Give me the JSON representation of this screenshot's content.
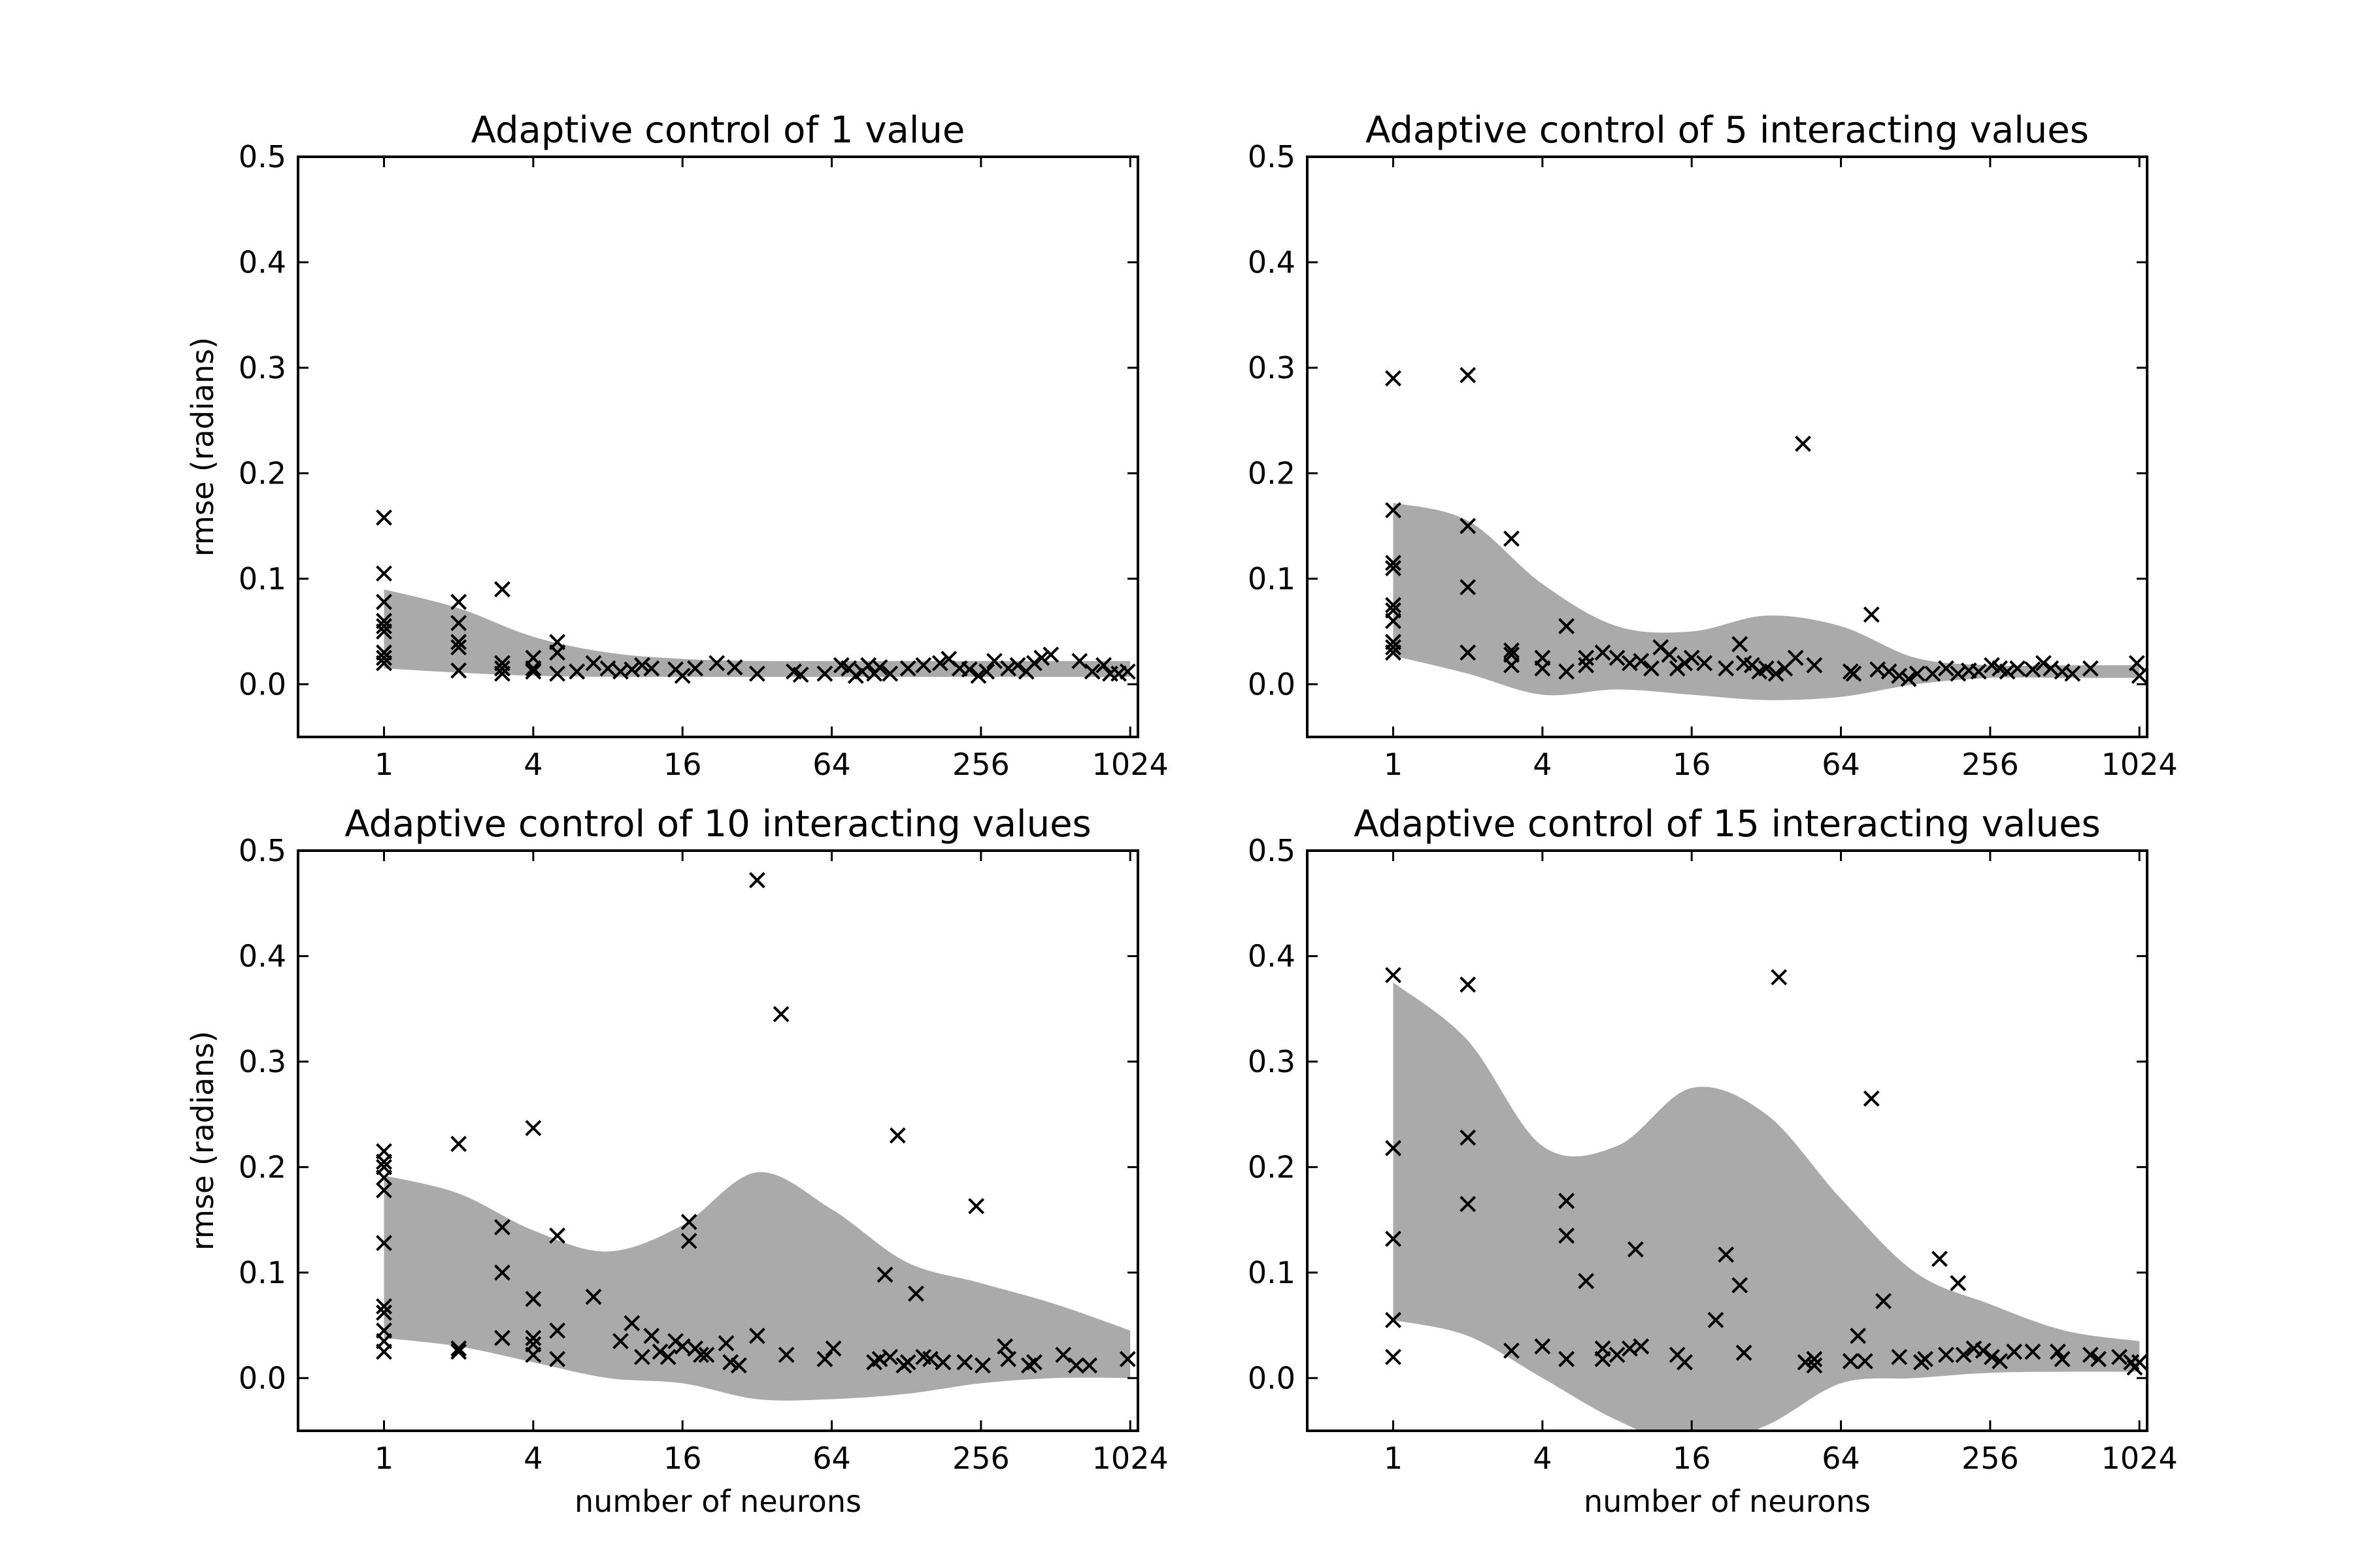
{
  "chart_data": [
    {
      "type": "scatter",
      "title": "Adaptive control of 1 value",
      "xlabel": "",
      "ylabel": "rmse (radians)",
      "x_scale": "log2",
      "xlim": [
        0.45,
        1100
      ],
      "ylim": [
        -0.05,
        0.5
      ],
      "xticks": [
        "1",
        "4",
        "16",
        "64",
        "256",
        "1024"
      ],
      "yticks": [
        "0.0",
        "0.1",
        "0.2",
        "0.3",
        "0.4",
        "0.5"
      ],
      "grid": false,
      "band_color": "#aaaaaa",
      "band": {
        "x": [
          1,
          2,
          4,
          8,
          16,
          32,
          64,
          128,
          256,
          512,
          1024
        ],
        "upper": [
          0.09,
          0.072,
          0.045,
          0.03,
          0.024,
          0.022,
          0.022,
          0.022,
          0.022,
          0.022,
          0.022
        ],
        "lower": [
          0.015,
          0.011,
          0.008,
          0.007,
          0.007,
          0.007,
          0.007,
          0.007,
          0.007,
          0.007,
          0.007
        ]
      },
      "points": [
        [
          1,
          0.158
        ],
        [
          1,
          0.105
        ],
        [
          1,
          0.078
        ],
        [
          1,
          0.06
        ],
        [
          1,
          0.055
        ],
        [
          1,
          0.05
        ],
        [
          1,
          0.03
        ],
        [
          1,
          0.025
        ],
        [
          1,
          0.02
        ],
        [
          2,
          0.078
        ],
        [
          2,
          0.058
        ],
        [
          2,
          0.04
        ],
        [
          2,
          0.035
        ],
        [
          2,
          0.013
        ],
        [
          3,
          0.09
        ],
        [
          3,
          0.02
        ],
        [
          3,
          0.015
        ],
        [
          3,
          0.01
        ],
        [
          4,
          0.025
        ],
        [
          4,
          0.015
        ],
        [
          4,
          0.012
        ],
        [
          5,
          0.04
        ],
        [
          5,
          0.03
        ],
        [
          5,
          0.01
        ],
        [
          6,
          0.012
        ],
        [
          7,
          0.02
        ],
        [
          8,
          0.015
        ],
        [
          9,
          0.012
        ],
        [
          10,
          0.014
        ],
        [
          11,
          0.018
        ],
        [
          12,
          0.015
        ],
        [
          15,
          0.014
        ],
        [
          16,
          0.008
        ],
        [
          18,
          0.015
        ],
        [
          22,
          0.02
        ],
        [
          26,
          0.016
        ],
        [
          32,
          0.01
        ],
        [
          45,
          0.012
        ],
        [
          48,
          0.009
        ],
        [
          60,
          0.01
        ],
        [
          70,
          0.018
        ],
        [
          75,
          0.015
        ],
        [
          80,
          0.008
        ],
        [
          85,
          0.012
        ],
        [
          90,
          0.018
        ],
        [
          95,
          0.01
        ],
        [
          100,
          0.016
        ],
        [
          110,
          0.01
        ],
        [
          130,
          0.015
        ],
        [
          150,
          0.018
        ],
        [
          175,
          0.02
        ],
        [
          190,
          0.024
        ],
        [
          210,
          0.015
        ],
        [
          230,
          0.014
        ],
        [
          250,
          0.008
        ],
        [
          270,
          0.012
        ],
        [
          290,
          0.022
        ],
        [
          330,
          0.015
        ],
        [
          360,
          0.018
        ],
        [
          390,
          0.012
        ],
        [
          420,
          0.02
        ],
        [
          450,
          0.025
        ],
        [
          490,
          0.028
        ],
        [
          640,
          0.022
        ],
        [
          720,
          0.012
        ],
        [
          800,
          0.018
        ],
        [
          850,
          0.01
        ],
        [
          920,
          0.01
        ],
        [
          1000,
          0.012
        ]
      ]
    },
    {
      "type": "scatter",
      "title": "Adaptive control of 5 interacting values",
      "xlabel": "",
      "ylabel": "",
      "x_scale": "log2",
      "xlim": [
        0.45,
        1100
      ],
      "ylim": [
        -0.05,
        0.5
      ],
      "xticks": [
        "1",
        "4",
        "16",
        "64",
        "256",
        "1024"
      ],
      "yticks": [
        "0.0",
        "0.1",
        "0.2",
        "0.3",
        "0.4",
        "0.5"
      ],
      "grid": false,
      "band_color": "#aaaaaa",
      "band": {
        "x": [
          1,
          2,
          4,
          8,
          16,
          32,
          64,
          128,
          256,
          512,
          1024
        ],
        "upper": [
          0.172,
          0.155,
          0.095,
          0.055,
          0.05,
          0.065,
          0.055,
          0.025,
          0.018,
          0.018,
          0.018
        ],
        "lower": [
          0.027,
          0.01,
          -0.01,
          -0.005,
          -0.01,
          -0.015,
          -0.012,
          0.0,
          0.006,
          0.006,
          0.006
        ]
      },
      "points": [
        [
          1,
          0.29
        ],
        [
          1,
          0.165
        ],
        [
          1,
          0.115
        ],
        [
          1,
          0.11
        ],
        [
          1,
          0.075
        ],
        [
          1,
          0.07
        ],
        [
          1,
          0.06
        ],
        [
          1,
          0.04
        ],
        [
          1,
          0.035
        ],
        [
          1,
          0.03
        ],
        [
          2,
          0.293
        ],
        [
          2,
          0.15
        ],
        [
          2,
          0.092
        ],
        [
          2,
          0.03
        ],
        [
          3,
          0.138
        ],
        [
          3,
          0.032
        ],
        [
          3,
          0.028
        ],
        [
          3,
          0.018
        ],
        [
          4,
          0.025
        ],
        [
          4,
          0.015
        ],
        [
          5,
          0.055
        ],
        [
          5,
          0.012
        ],
        [
          6,
          0.025
        ],
        [
          6,
          0.018
        ],
        [
          7,
          0.03
        ],
        [
          8,
          0.025
        ],
        [
          9,
          0.02
        ],
        [
          10,
          0.022
        ],
        [
          11,
          0.015
        ],
        [
          12,
          0.035
        ],
        [
          13,
          0.028
        ],
        [
          14,
          0.015
        ],
        [
          15,
          0.02
        ],
        [
          16,
          0.025
        ],
        [
          18,
          0.02
        ],
        [
          22,
          0.015
        ],
        [
          25,
          0.038
        ],
        [
          26,
          0.02
        ],
        [
          28,
          0.018
        ],
        [
          30,
          0.012
        ],
        [
          32,
          0.015
        ],
        [
          35,
          0.01
        ],
        [
          38,
          0.015
        ],
        [
          42,
          0.025
        ],
        [
          45,
          0.228
        ],
        [
          50,
          0.018
        ],
        [
          70,
          0.012
        ],
        [
          72,
          0.01
        ],
        [
          85,
          0.066
        ],
        [
          90,
          0.014
        ],
        [
          100,
          0.012
        ],
        [
          110,
          0.008
        ],
        [
          120,
          0.005
        ],
        [
          130,
          0.01
        ],
        [
          150,
          0.01
        ],
        [
          170,
          0.015
        ],
        [
          190,
          0.01
        ],
        [
          210,
          0.013
        ],
        [
          230,
          0.012
        ],
        [
          260,
          0.018
        ],
        [
          280,
          0.015
        ],
        [
          300,
          0.012
        ],
        [
          330,
          0.015
        ],
        [
          380,
          0.014
        ],
        [
          420,
          0.02
        ],
        [
          450,
          0.015
        ],
        [
          500,
          0.012
        ],
        [
          550,
          0.01
        ],
        [
          650,
          0.015
        ],
        [
          1000,
          0.02
        ],
        [
          1024,
          0.008
        ]
      ]
    },
    {
      "type": "scatter",
      "title": "Adaptive control of 10 interacting values",
      "xlabel": "number of neurons",
      "ylabel": "rmse (radians)",
      "x_scale": "log2",
      "xlim": [
        0.45,
        1100
      ],
      "ylim": [
        -0.05,
        0.5
      ],
      "xticks": [
        "1",
        "4",
        "16",
        "64",
        "256",
        "1024"
      ],
      "yticks": [
        "0.0",
        "0.1",
        "0.2",
        "0.3",
        "0.4",
        "0.5"
      ],
      "grid": false,
      "band_color": "#aaaaaa",
      "band": {
        "x": [
          1,
          2,
          4,
          8,
          16,
          32,
          64,
          128,
          256,
          512,
          1024
        ],
        "upper": [
          0.192,
          0.175,
          0.14,
          0.12,
          0.145,
          0.195,
          0.16,
          0.11,
          0.09,
          0.07,
          0.045
        ],
        "lower": [
          0.038,
          0.03,
          0.015,
          0.0,
          -0.005,
          -0.02,
          -0.02,
          -0.015,
          -0.005,
          0.0,
          0.0
        ]
      },
      "points": [
        [
          1,
          0.215
        ],
        [
          1,
          0.205
        ],
        [
          1,
          0.2
        ],
        [
          1,
          0.19
        ],
        [
          1,
          0.178
        ],
        [
          1,
          0.128
        ],
        [
          1,
          0.068
        ],
        [
          1,
          0.062
        ],
        [
          1,
          0.045
        ],
        [
          1,
          0.035
        ],
        [
          1,
          0.025
        ],
        [
          2,
          0.222
        ],
        [
          2,
          0.028
        ],
        [
          2,
          0.025
        ],
        [
          3,
          0.143
        ],
        [
          3,
          0.1
        ],
        [
          3,
          0.038
        ],
        [
          4,
          0.237
        ],
        [
          4,
          0.075
        ],
        [
          4,
          0.038
        ],
        [
          4,
          0.032
        ],
        [
          4,
          0.022
        ],
        [
          5,
          0.135
        ],
        [
          5,
          0.045
        ],
        [
          5,
          0.018
        ],
        [
          7,
          0.077
        ],
        [
          9,
          0.035
        ],
        [
          10,
          0.052
        ],
        [
          11,
          0.02
        ],
        [
          12,
          0.04
        ],
        [
          13,
          0.025
        ],
        [
          14,
          0.02
        ],
        [
          15,
          0.035
        ],
        [
          16,
          0.03
        ],
        [
          17,
          0.148
        ],
        [
          17,
          0.13
        ],
        [
          18,
          0.028
        ],
        [
          19,
          0.022
        ],
        [
          20,
          0.022
        ],
        [
          24,
          0.033
        ],
        [
          25,
          0.015
        ],
        [
          27,
          0.012
        ],
        [
          32,
          0.04
        ],
        [
          32,
          0.472
        ],
        [
          40,
          0.345
        ],
        [
          42,
          0.022
        ],
        [
          60,
          0.018
        ],
        [
          65,
          0.028
        ],
        [
          95,
          0.015
        ],
        [
          100,
          0.018
        ],
        [
          105,
          0.098
        ],
        [
          110,
          0.02
        ],
        [
          118,
          0.23
        ],
        [
          125,
          0.012
        ],
        [
          130,
          0.015
        ],
        [
          140,
          0.08
        ],
        [
          150,
          0.02
        ],
        [
          160,
          0.018
        ],
        [
          180,
          0.015
        ],
        [
          220,
          0.015
        ],
        [
          245,
          0.163
        ],
        [
          260,
          0.012
        ],
        [
          320,
          0.03
        ],
        [
          330,
          0.018
        ],
        [
          400,
          0.012
        ],
        [
          420,
          0.015
        ],
        [
          550,
          0.022
        ],
        [
          620,
          0.012
        ],
        [
          700,
          0.012
        ],
        [
          1000,
          0.018
        ]
      ]
    },
    {
      "type": "scatter",
      "title": "Adaptive control of 15 interacting values",
      "xlabel": "number of neurons",
      "ylabel": "",
      "x_scale": "log2",
      "xlim": [
        0.45,
        1100
      ],
      "ylim": [
        -0.05,
        0.5
      ],
      "xticks": [
        "1",
        "4",
        "16",
        "64",
        "256",
        "1024"
      ],
      "yticks": [
        "0.0",
        "0.1",
        "0.2",
        "0.3",
        "0.4",
        "0.5"
      ],
      "grid": false,
      "band_color": "#aaaaaa",
      "band": {
        "x": [
          1,
          2,
          4,
          8,
          16,
          32,
          64,
          128,
          256,
          512,
          1024
        ],
        "upper": [
          0.375,
          0.32,
          0.22,
          0.22,
          0.275,
          0.25,
          0.17,
          0.1,
          0.07,
          0.045,
          0.035
        ],
        "lower": [
          0.055,
          0.04,
          0.0,
          -0.04,
          -0.065,
          -0.045,
          -0.005,
          0.0,
          0.005,
          0.006,
          0.006
        ]
      },
      "points": [
        [
          1,
          0.382
        ],
        [
          1,
          0.218
        ],
        [
          1,
          0.132
        ],
        [
          1,
          0.055
        ],
        [
          1,
          0.02
        ],
        [
          2,
          0.373
        ],
        [
          2,
          0.228
        ],
        [
          2,
          0.165
        ],
        [
          3,
          0.026
        ],
        [
          4,
          0.03
        ],
        [
          5,
          0.168
        ],
        [
          5,
          0.135
        ],
        [
          5,
          0.018
        ],
        [
          6,
          0.092
        ],
        [
          7,
          0.028
        ],
        [
          7,
          0.018
        ],
        [
          8,
          0.022
        ],
        [
          9,
          0.028
        ],
        [
          9.5,
          0.122
        ],
        [
          10,
          0.03
        ],
        [
          14,
          0.022
        ],
        [
          15,
          0.015
        ],
        [
          20,
          0.055
        ],
        [
          22,
          0.117
        ],
        [
          25,
          0.088
        ],
        [
          26,
          0.024
        ],
        [
          36,
          0.38
        ],
        [
          46,
          0.015
        ],
        [
          50,
          0.012
        ],
        [
          50,
          0.018
        ],
        [
          70,
          0.016
        ],
        [
          75,
          0.04
        ],
        [
          80,
          0.016
        ],
        [
          85,
          0.265
        ],
        [
          95,
          0.073
        ],
        [
          110,
          0.02
        ],
        [
          135,
          0.015
        ],
        [
          140,
          0.018
        ],
        [
          160,
          0.113
        ],
        [
          170,
          0.022
        ],
        [
          190,
          0.09
        ],
        [
          200,
          0.022
        ],
        [
          220,
          0.028
        ],
        [
          240,
          0.026
        ],
        [
          260,
          0.02
        ],
        [
          280,
          0.016
        ],
        [
          320,
          0.025
        ],
        [
          380,
          0.025
        ],
        [
          480,
          0.025
        ],
        [
          500,
          0.018
        ],
        [
          650,
          0.022
        ],
        [
          700,
          0.018
        ],
        [
          850,
          0.02
        ],
        [
          950,
          0.015
        ],
        [
          980,
          0.01
        ],
        [
          1024,
          0.015
        ]
      ]
    }
  ]
}
